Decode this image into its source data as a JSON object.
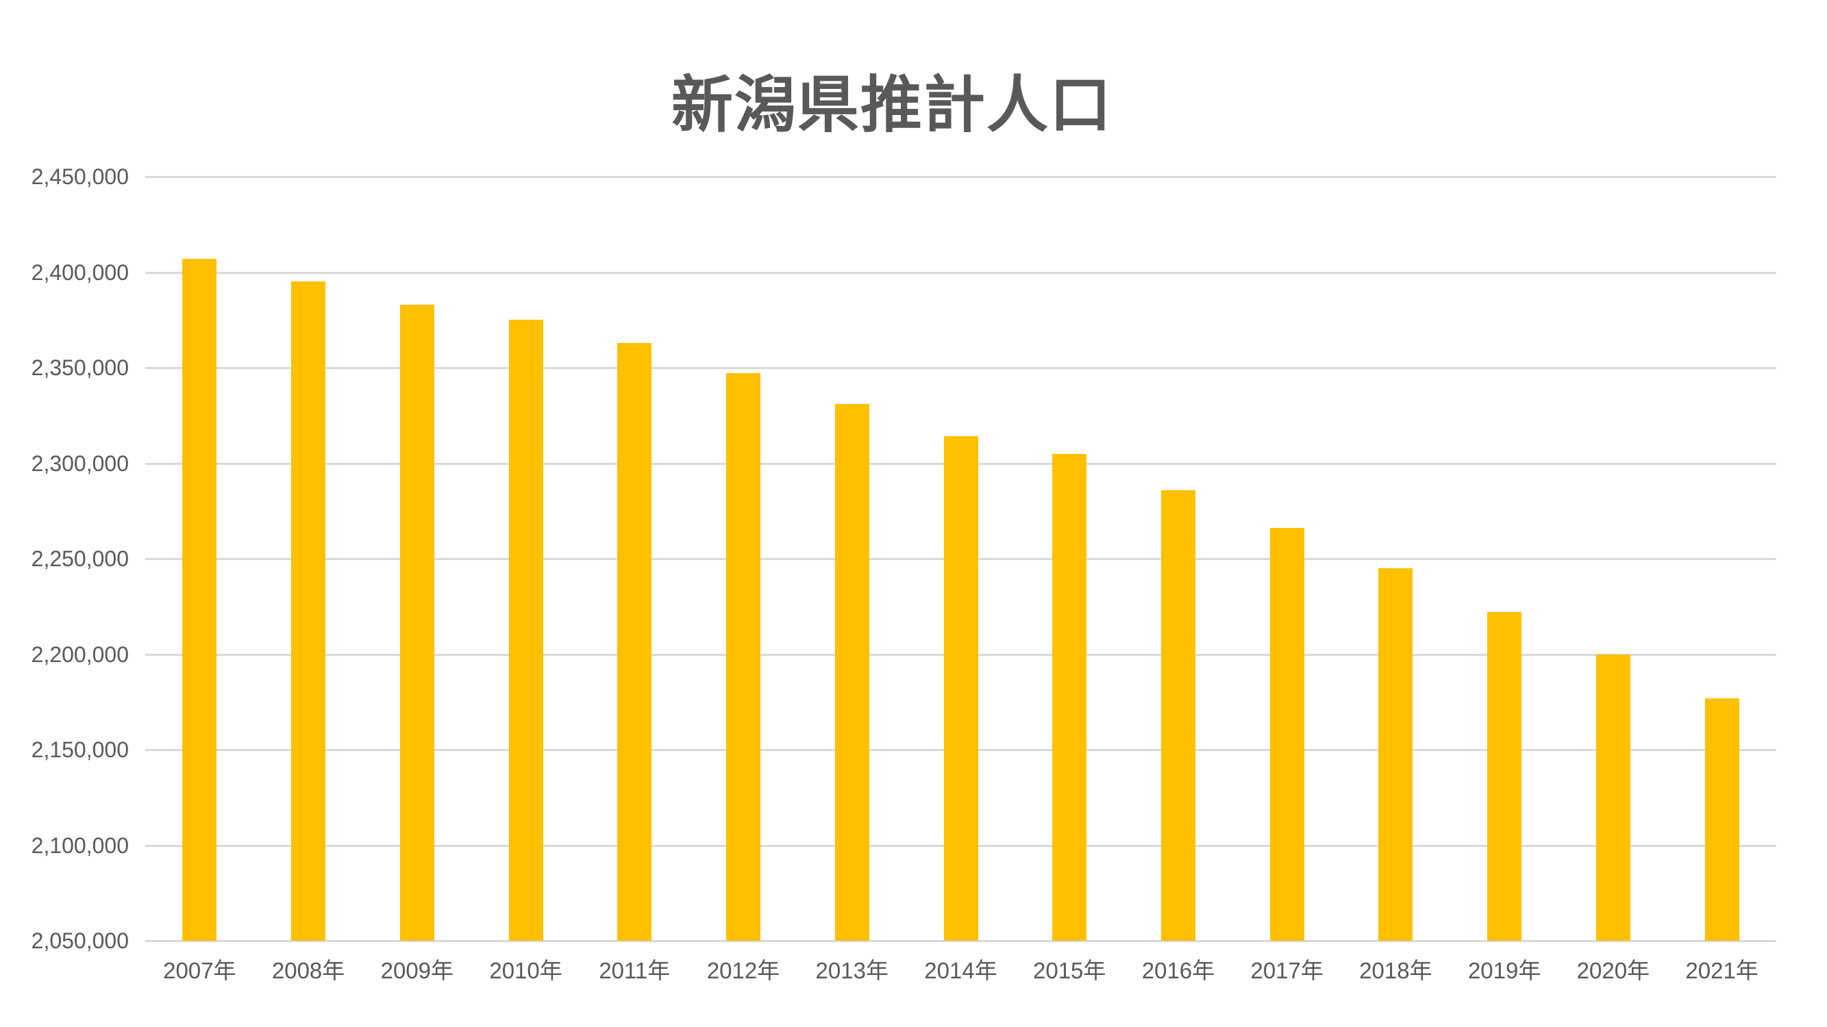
{
  "chart_data": {
    "type": "bar",
    "title": "新潟県推計人口",
    "categories": [
      "2007年",
      "2008年",
      "2009年",
      "2010年",
      "2011年",
      "2012年",
      "2013年",
      "2014年",
      "2015年",
      "2016年",
      "2017年",
      "2018年",
      "2019年",
      "2020年",
      "2021年"
    ],
    "values": [
      2407000,
      2395000,
      2383000,
      2375000,
      2363000,
      2347000,
      2331000,
      2314000,
      2305000,
      2286000,
      2266000,
      2245000,
      2222000,
      2200000,
      2177000
    ],
    "xlabel": "",
    "ylabel": "",
    "ylim": [
      2050000,
      2450000
    ],
    "ytick_step": 50000,
    "ytick_labels": [
      "2,050,000",
      "2,100,000",
      "2,150,000",
      "2,200,000",
      "2,250,000",
      "2,300,000",
      "2,350,000",
      "2,400,000",
      "2,450,000"
    ],
    "grid": "horizontal",
    "legend": "none",
    "colors": {
      "bar": "#FFC000",
      "gridline": "#D9D9D9",
      "axis_line": "#D9D9D9",
      "tick_text": "#595959",
      "title_text": "#595959"
    }
  }
}
